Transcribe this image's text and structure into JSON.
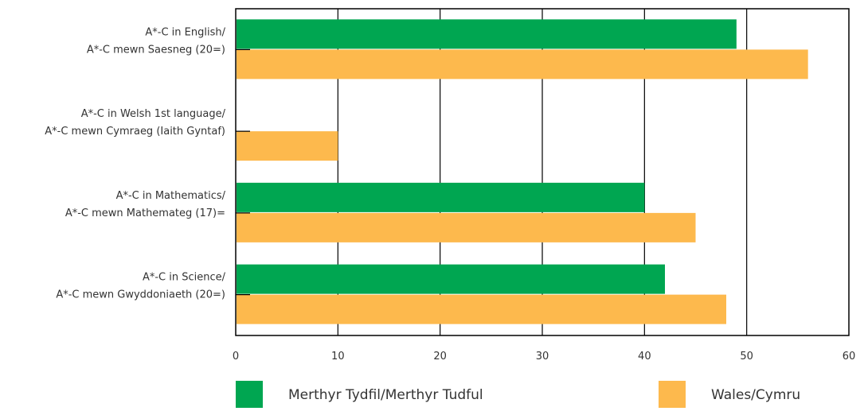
{
  "chart_data": {
    "type": "bar",
    "orientation": "horizontal",
    "categories": [
      [
        "A*-C in English/",
        "A*-C mewn Saesneg (20=)"
      ],
      [
        "A*-C in Welsh 1st language/",
        "A*-C mewn Cymraeg (Iaith Gyntaf)"
      ],
      [
        "A*-C in Mathematics/",
        "A*-C mewn Mathemateg (17)="
      ],
      [
        "A*-C in Science/",
        "A*-C mewn Gwyddoniaeth (20=)"
      ]
    ],
    "series": [
      {
        "name": "Merthyr Tydfil/Merthyr Tudful",
        "color": "#00a651",
        "values": [
          49,
          null,
          40,
          42
        ]
      },
      {
        "name": "Wales/Cymru",
        "color": "#fdb94d",
        "values": [
          56,
          10,
          45,
          48
        ]
      }
    ],
    "xlim": [
      0,
      60
    ],
    "xticks": [
      0,
      10,
      20,
      30,
      40,
      50,
      60
    ],
    "grid": true,
    "legend": "bottom"
  }
}
